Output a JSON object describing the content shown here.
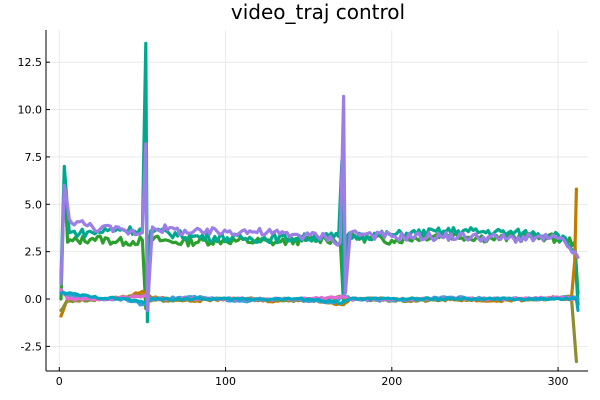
{
  "chart_data": {
    "type": "line",
    "title": "video_traj control",
    "xlabel": "",
    "ylabel": "",
    "xlim": [
      -8,
      318
    ],
    "ylim": [
      -3.8,
      14.2
    ],
    "xticks": [
      0,
      100,
      200,
      300
    ],
    "xtick_labels": [
      "0",
      "100",
      "200",
      "300"
    ],
    "yticks": [
      -2.5,
      0.0,
      2.5,
      5.0,
      7.5,
      10.0,
      12.5
    ],
    "ytick_labels": [
      "-2.5",
      "0.0",
      "2.5",
      "5.0",
      "7.5",
      "10.0",
      "12.5"
    ],
    "grid": true,
    "legend": "none",
    "series": [
      {
        "color": "#2ca02c",
        "values": [
          [
            1,
            0.0
          ],
          [
            3,
            6.5
          ],
          [
            5,
            3.0
          ],
          [
            20,
            3.2
          ],
          [
            40,
            3.0
          ],
          [
            50,
            3.1
          ],
          [
            52,
            -0.5
          ],
          [
            53,
            3.2
          ],
          [
            70,
            3.0
          ],
          [
            100,
            3.1
          ],
          [
            130,
            3.0
          ],
          [
            160,
            3.2
          ],
          [
            169,
            3.0
          ],
          [
            171,
            -0.3
          ],
          [
            173,
            3.3
          ],
          [
            200,
            3.1
          ],
          [
            230,
            3.4
          ],
          [
            260,
            3.2
          ],
          [
            290,
            3.3
          ],
          [
            310,
            3.0
          ],
          [
            312,
            0.3
          ]
        ]
      },
      {
        "color": "#00a98d",
        "values": [
          [
            1,
            1.0
          ],
          [
            3,
            7.0
          ],
          [
            6,
            3.5
          ],
          [
            20,
            3.5
          ],
          [
            35,
            3.7
          ],
          [
            50,
            3.6
          ],
          [
            52,
            13.5
          ],
          [
            53,
            -1.2
          ],
          [
            55,
            3.6
          ],
          [
            80,
            3.3
          ],
          [
            110,
            3.2
          ],
          [
            140,
            3.2
          ],
          [
            168,
            3.3
          ],
          [
            170,
            7.3
          ],
          [
            171,
            0.0
          ],
          [
            173,
            3.3
          ],
          [
            200,
            3.4
          ],
          [
            240,
            3.6
          ],
          [
            270,
            3.5
          ],
          [
            300,
            3.4
          ],
          [
            310,
            2.6
          ],
          [
            312,
            -0.3
          ]
        ]
      },
      {
        "color": "#c27c00",
        "values": [
          [
            1,
            -0.9
          ],
          [
            5,
            0.0
          ],
          [
            20,
            0.0
          ],
          [
            40,
            0.1
          ],
          [
            50,
            0.4
          ],
          [
            55,
            0.1
          ],
          [
            80,
            -0.1
          ],
          [
            100,
            0.0
          ],
          [
            130,
            -0.1
          ],
          [
            150,
            0.0
          ],
          [
            170,
            -0.3
          ],
          [
            175,
            0.0
          ],
          [
            200,
            0.0
          ],
          [
            230,
            0.0
          ],
          [
            260,
            -0.1
          ],
          [
            290,
            0.0
          ],
          [
            308,
            0.0
          ],
          [
            310,
            2.0
          ],
          [
            311,
            5.8
          ]
        ]
      },
      {
        "color": "#8e8e2e",
        "values": [
          [
            1,
            -0.6
          ],
          [
            5,
            -0.1
          ],
          [
            30,
            0.0
          ],
          [
            50,
            0.2
          ],
          [
            55,
            -0.1
          ],
          [
            90,
            0.0
          ],
          [
            120,
            0.0
          ],
          [
            150,
            -0.1
          ],
          [
            170,
            0.1
          ],
          [
            175,
            0.0
          ],
          [
            210,
            -0.1
          ],
          [
            250,
            0.0
          ],
          [
            290,
            0.0
          ],
          [
            308,
            0.1
          ],
          [
            311,
            -3.3
          ]
        ]
      },
      {
        "color": "#3d9ed9",
        "values": [
          [
            1,
            0.4
          ],
          [
            5,
            0.2
          ],
          [
            20,
            0.0
          ],
          [
            40,
            0.0
          ],
          [
            50,
            -0.3
          ],
          [
            55,
            0.0
          ],
          [
            80,
            0.1
          ],
          [
            110,
            -0.1
          ],
          [
            140,
            0.0
          ],
          [
            165,
            -0.2
          ],
          [
            171,
            0.2
          ],
          [
            175,
            0.0
          ],
          [
            200,
            -0.1
          ],
          [
            230,
            0.1
          ],
          [
            260,
            0.0
          ],
          [
            290,
            0.0
          ],
          [
            310,
            0.1
          ],
          [
            312,
            0.0
          ]
        ]
      },
      {
        "color": "#e26ad2",
        "values": [
          [
            1,
            0.5
          ],
          [
            5,
            0.0
          ],
          [
            30,
            0.0
          ],
          [
            52,
            0.2
          ],
          [
            55,
            0.0
          ],
          [
            100,
            0.0
          ],
          [
            140,
            0.0
          ],
          [
            171,
            0.1
          ],
          [
            175,
            0.0
          ],
          [
            220,
            0.0
          ],
          [
            260,
            0.0
          ],
          [
            300,
            0.1
          ],
          [
            311,
            0.0
          ]
        ]
      },
      {
        "color": "#00a9c0",
        "values": [
          [
            1,
            0.3
          ],
          [
            5,
            0.3
          ],
          [
            20,
            0.1
          ],
          [
            40,
            0.0
          ],
          [
            51,
            -0.2
          ],
          [
            55,
            0.0
          ],
          [
            90,
            0.0
          ],
          [
            120,
            0.0
          ],
          [
            150,
            0.0
          ],
          [
            170,
            -0.2
          ],
          [
            175,
            0.0
          ],
          [
            210,
            0.0
          ],
          [
            250,
            0.0
          ],
          [
            290,
            0.0
          ],
          [
            311,
            0.0
          ],
          [
            312,
            -0.6
          ]
        ]
      },
      {
        "color": "#9b7fe6",
        "values": [
          [
            1,
            0.8
          ],
          [
            3,
            6.0
          ],
          [
            6,
            4.2
          ],
          [
            20,
            3.8
          ],
          [
            40,
            3.6
          ],
          [
            50,
            3.5
          ],
          [
            52,
            8.2
          ],
          [
            53,
            -0.6
          ],
          [
            56,
            3.8
          ],
          [
            80,
            3.5
          ],
          [
            110,
            3.6
          ],
          [
            140,
            3.4
          ],
          [
            160,
            3.3
          ],
          [
            169,
            3.0
          ],
          [
            171,
            10.7
          ],
          [
            172,
            0.3
          ],
          [
            175,
            3.5
          ],
          [
            200,
            3.3
          ],
          [
            240,
            3.3
          ],
          [
            270,
            3.2
          ],
          [
            300,
            3.2
          ],
          [
            310,
            2.5
          ],
          [
            312,
            2.2
          ]
        ]
      }
    ]
  }
}
